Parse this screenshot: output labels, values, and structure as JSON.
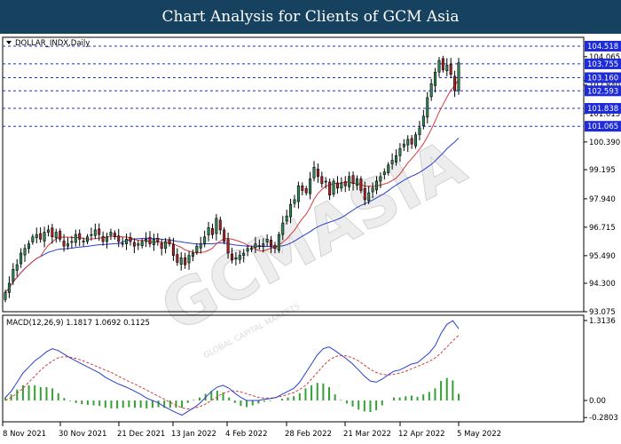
{
  "header": {
    "title": "Chart Analysis for Clients of GCM Asia"
  },
  "symbol_label": "DOLLAR_INDX,Daily",
  "watermark": {
    "text": "GCMASIA",
    "subtext": "GLOBAL CAPITAL MARKETS"
  },
  "colors": {
    "banner": "#16415f",
    "bull_candle": "#2e8b57",
    "bear_candle": "#b22222",
    "ma_fast": "#d23c3c",
    "ma_slow": "#2a3fcf",
    "level_line": "#1f2bd6",
    "level_tag": "#1f2bd6",
    "macd_line": "#2a3fcf",
    "signal_line": "#d23c3c",
    "histogram": "#33a133"
  },
  "chart_data": [
    {
      "type": "candlestick",
      "symbol": "DOLLAR_INDX",
      "timeframe": "Daily",
      "y_ticks": [
        104.065,
        103.04,
        102.84,
        101.615,
        100.39,
        99.195,
        97.94,
        96.715,
        95.49,
        94.3,
        93.075
      ],
      "ylim": [
        93.075,
        104.9
      ],
      "x_ticks": [
        "8 Nov 2021",
        "30 Nov 2021",
        "21 Dec 2021",
        "13 Jan 2022",
        "4 Feb 2022",
        "28 Feb 2022",
        "21 Mar 2022",
        "12 Apr 2022",
        "5 May 2022"
      ],
      "levels": [
        104.518,
        103.755,
        103.16,
        102.593,
        101.838,
        101.065
      ],
      "level_labels": [
        "104.518",
        "103.755",
        "103.160",
        "102.593",
        "101.838",
        "101.065"
      ],
      "close_series": [
        93.9,
        94.3,
        94.9,
        95.1,
        95.6,
        95.8,
        96.0,
        96.3,
        96.4,
        96.2,
        96.5,
        96.6,
        96.3,
        96.5,
        96.2,
        95.9,
        96.0,
        96.1,
        96.4,
        96.2,
        96.1,
        96.3,
        96.4,
        96.6,
        96.4,
        96.1,
        96.3,
        96.5,
        96.3,
        96.1,
        96.0,
        96.2,
        96.1,
        95.9,
        96.0,
        96.1,
        96.2,
        96.0,
        96.2,
        96.1,
        95.8,
        96.1,
        96.0,
        95.5,
        95.2,
        95.4,
        95.1,
        95.5,
        95.6,
        95.9,
        96.0,
        96.3,
        96.7,
        96.4,
        97.1,
        96.6,
        96.1,
        95.6,
        95.3,
        95.4,
        95.5,
        95.6,
        95.8,
        95.8,
        96.0,
        95.9,
        96.0,
        96.2,
        95.9,
        95.8,
        96.4,
        96.9,
        97.2,
        97.7,
        97.9,
        98.5,
        98.3,
        98.2,
        98.8,
        99.3,
        98.9,
        98.6,
        98.7,
        98.1,
        98.7,
        98.4,
        98.6,
        98.5,
        98.9,
        98.6,
        98.8,
        98.3,
        97.9,
        98.2,
        98.4,
        98.7,
        98.9,
        99.1,
        99.4,
        99.6,
        99.8,
        100.1,
        100.3,
        100.5,
        100.3,
        100.7,
        101.0,
        101.5,
        102.3,
        102.9,
        103.4,
        103.9,
        103.5,
        103.7,
        103.3,
        102.6,
        103.8
      ],
      "ma_fast_last": 101.6,
      "ma_slow_last": 100.1
    },
    {
      "type": "macd",
      "label": "MACD(12,26,9) 1.1817 1.0692 0.1125",
      "params": [
        12,
        26,
        9
      ],
      "macd": 1.1817,
      "signal": 1.0692,
      "histogram_value": 0.1125,
      "y_ticks": [
        1.3136,
        0.0,
        -0.2803
      ],
      "ylim": [
        -0.35,
        1.4
      ],
      "macd_series": [
        0.05,
        0.15,
        0.3,
        0.45,
        0.55,
        0.65,
        0.72,
        0.8,
        0.85,
        0.82,
        0.76,
        0.7,
        0.65,
        0.6,
        0.55,
        0.5,
        0.45,
        0.38,
        0.33,
        0.28,
        0.24,
        0.2,
        0.15,
        0.1,
        0.04,
        0.0,
        -0.04,
        -0.1,
        -0.15,
        -0.2,
        -0.24,
        -0.18,
        -0.12,
        -0.05,
        0.05,
        0.15,
        0.22,
        0.25,
        0.2,
        0.12,
        0.05,
        0.0,
        0.0,
        0.0,
        0.02,
        0.03,
        0.05,
        0.1,
        0.15,
        0.2,
        0.3,
        0.45,
        0.6,
        0.75,
        0.85,
        0.88,
        0.82,
        0.75,
        0.68,
        0.6,
        0.5,
        0.4,
        0.32,
        0.3,
        0.35,
        0.42,
        0.48,
        0.5,
        0.55,
        0.6,
        0.62,
        0.7,
        0.78,
        0.9,
        1.1,
        1.25,
        1.31,
        1.18
      ],
      "signal_series": [
        0.0,
        0.05,
        0.12,
        0.2,
        0.3,
        0.4,
        0.5,
        0.58,
        0.65,
        0.7,
        0.72,
        0.71,
        0.69,
        0.66,
        0.62,
        0.58,
        0.54,
        0.5,
        0.46,
        0.41,
        0.36,
        0.31,
        0.27,
        0.22,
        0.17,
        0.12,
        0.07,
        0.02,
        -0.03,
        -0.08,
        -0.12,
        -0.14,
        -0.13,
        -0.1,
        -0.06,
        0.0,
        0.06,
        0.12,
        0.15,
        0.16,
        0.14,
        0.11,
        0.08,
        0.05,
        0.04,
        0.04,
        0.05,
        0.07,
        0.1,
        0.13,
        0.18,
        0.25,
        0.35,
        0.46,
        0.57,
        0.66,
        0.72,
        0.74,
        0.73,
        0.7,
        0.65,
        0.58,
        0.51,
        0.46,
        0.43,
        0.42,
        0.43,
        0.45,
        0.48,
        0.52,
        0.56,
        0.6,
        0.64,
        0.7,
        0.78,
        0.88,
        0.98,
        1.07
      ]
    }
  ]
}
